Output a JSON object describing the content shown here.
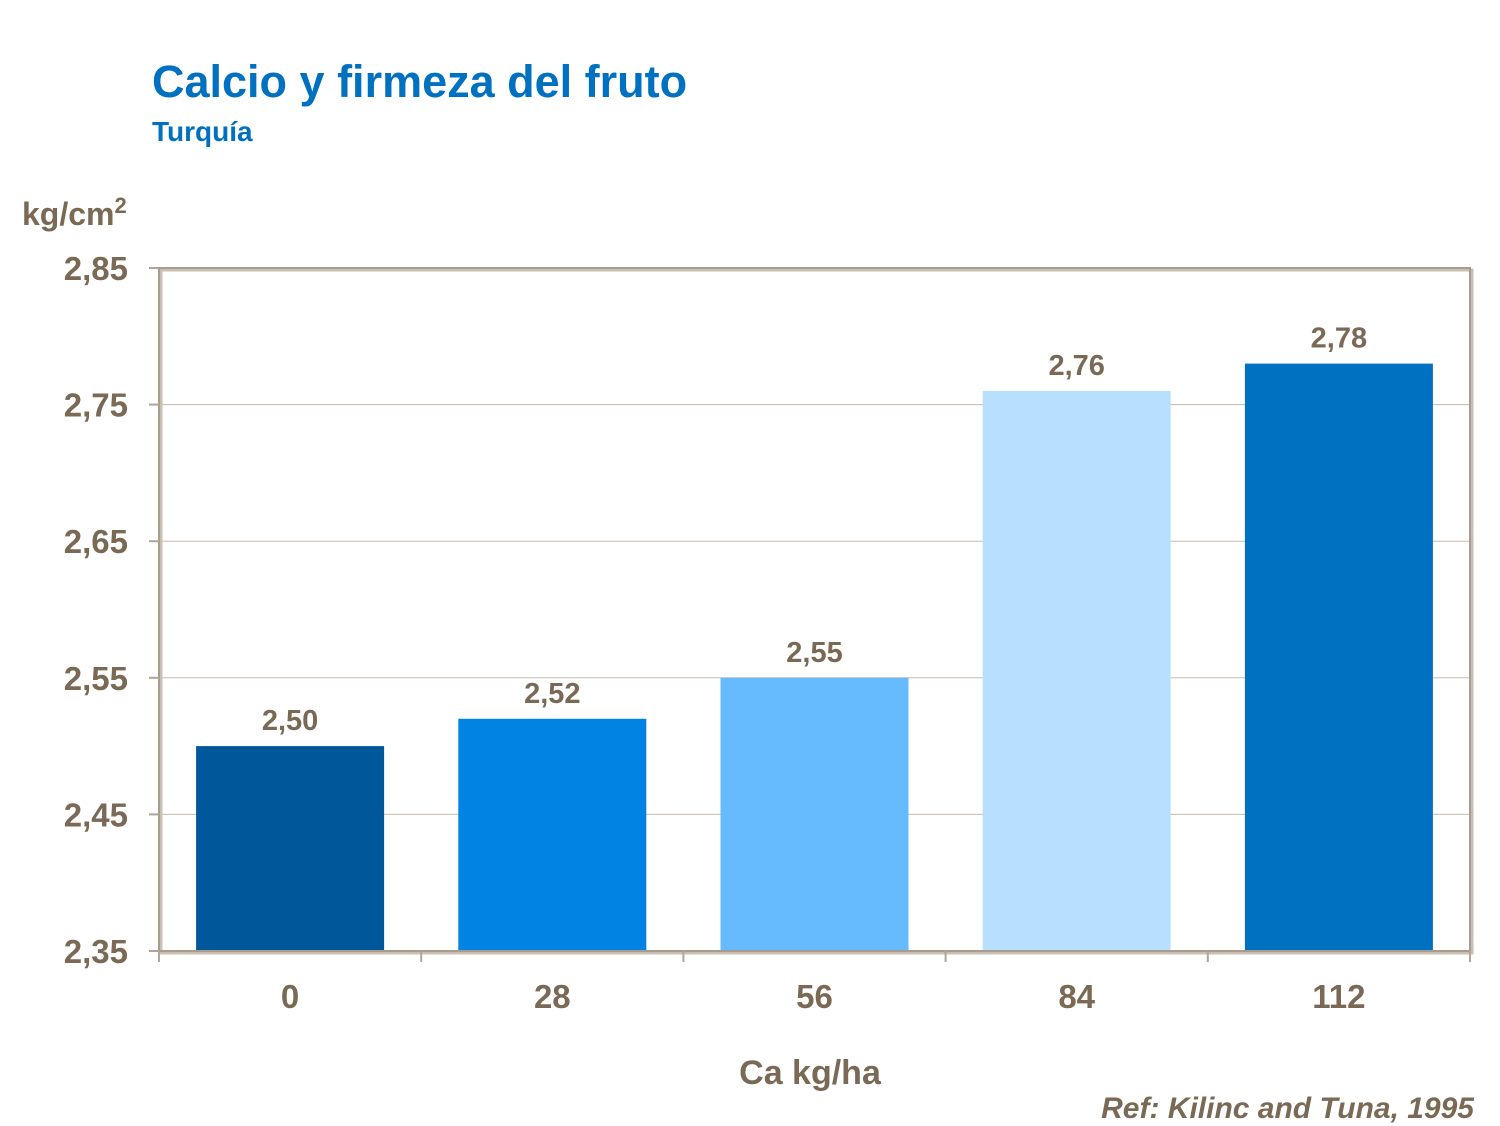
{
  "chart_data": {
    "type": "bar",
    "title": "Calcio y firmeza del fruto",
    "subtitle": "Turquía",
    "ylabel": "kg/cm",
    "ylabel_superscript": "2",
    "xlabel": "Ca kg/ha",
    "categories": [
      "0",
      "28",
      "56",
      "84",
      "112"
    ],
    "values": [
      2.5,
      2.52,
      2.55,
      2.76,
      2.78
    ],
    "data_labels": [
      "2,50",
      "2,52",
      "2,55",
      "2,76",
      "2,78"
    ],
    "bar_colors": [
      "#00579A",
      "#0083E3",
      "#66BBFF",
      "#B9DFFF",
      "#0070C0"
    ],
    "ylim": [
      2.35,
      2.85
    ],
    "yticks": [
      2.35,
      2.45,
      2.55,
      2.65,
      2.75,
      2.85
    ],
    "ytick_labels": [
      "2,35",
      "2,45",
      "2,55",
      "2,65",
      "2,75",
      "2,85"
    ],
    "grid": true,
    "legend": "none"
  },
  "reference": "Ref: Kilinc and Tuna, 1995"
}
